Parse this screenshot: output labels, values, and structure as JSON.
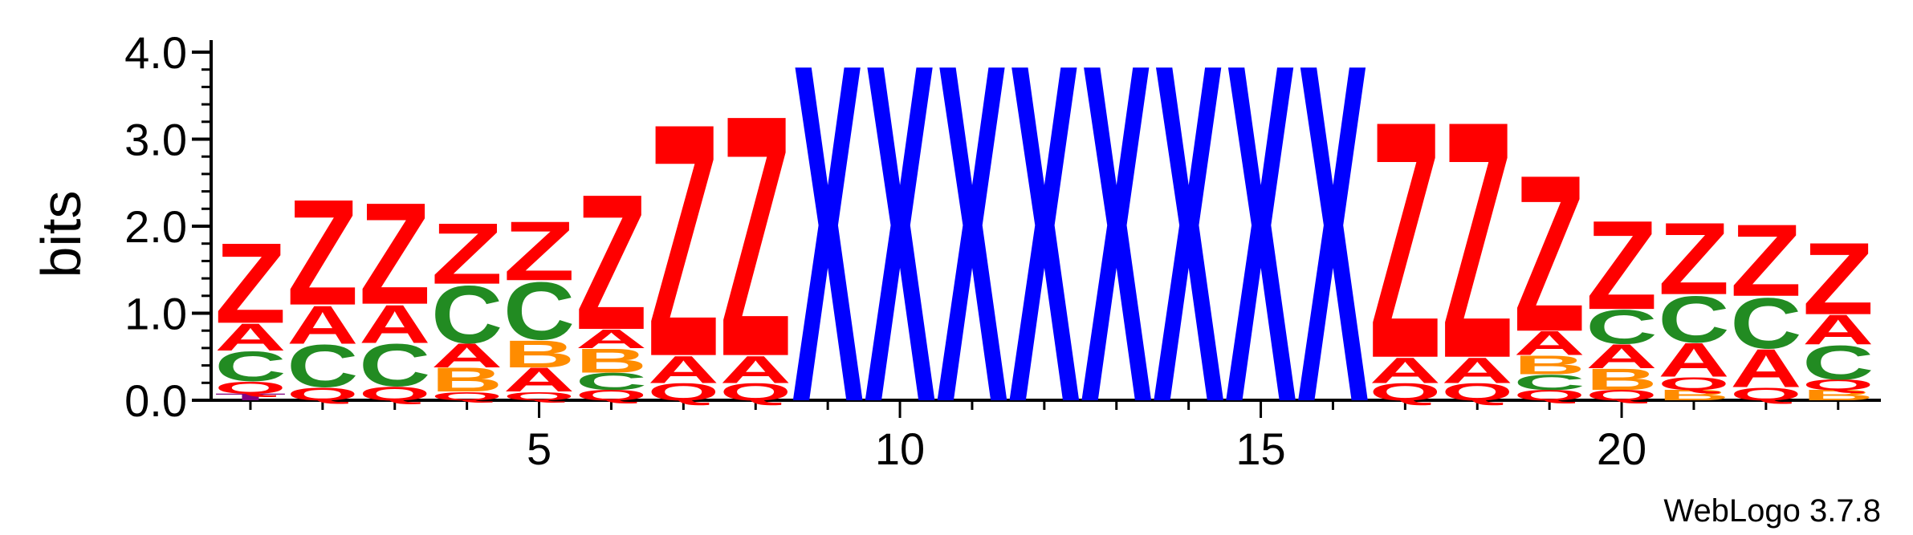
{
  "chart_data": {
    "type": "sequence-logo",
    "ylabel": "bits",
    "ylim": [
      0,
      4.0
    ],
    "yticks": [
      "0.0",
      "1.0",
      "2.0",
      "3.0",
      "4.0"
    ],
    "xticks": [
      {
        "pos": 5,
        "label": "5"
      },
      {
        "pos": 10,
        "label": "10"
      },
      {
        "pos": 15,
        "label": "15"
      },
      {
        "pos": 20,
        "label": "20"
      }
    ],
    "credit": "WebLogo 3.7.8",
    "colors": {
      "Z": "#ff0000",
      "A": "#ff0000",
      "Q": "#ff0000",
      "C": "#228b22",
      "B": "#ff8c00",
      "X": "#0000ff",
      "T": "#800080"
    },
    "positions": [
      {
        "pos": 1,
        "stack": [
          {
            "letter": "T",
            "h": 0.08
          },
          {
            "letter": "Q",
            "h": 0.14
          },
          {
            "letter": "C",
            "h": 0.35
          },
          {
            "letter": "A",
            "h": 0.32
          },
          {
            "letter": "Z",
            "h": 0.95
          }
        ]
      },
      {
        "pos": 2,
        "stack": [
          {
            "letter": "Q",
            "h": 0.15
          },
          {
            "letter": "C",
            "h": 0.5
          },
          {
            "letter": "A",
            "h": 0.45
          },
          {
            "letter": "Z",
            "h": 1.25
          }
        ]
      },
      {
        "pos": 3,
        "stack": [
          {
            "letter": "Q",
            "h": 0.16
          },
          {
            "letter": "C",
            "h": 0.5
          },
          {
            "letter": "A",
            "h": 0.45
          },
          {
            "letter": "Z",
            "h": 1.2
          }
        ]
      },
      {
        "pos": 4,
        "stack": [
          {
            "letter": "Q",
            "h": 0.1
          },
          {
            "letter": "B",
            "h": 0.28
          },
          {
            "letter": "A",
            "h": 0.28
          },
          {
            "letter": "C",
            "h": 0.68
          },
          {
            "letter": "Z",
            "h": 0.72
          }
        ]
      },
      {
        "pos": 5,
        "stack": [
          {
            "letter": "Q",
            "h": 0.1
          },
          {
            "letter": "A",
            "h": 0.28
          },
          {
            "letter": "B",
            "h": 0.32
          },
          {
            "letter": "C",
            "h": 0.68
          },
          {
            "letter": "Z",
            "h": 0.7
          }
        ]
      },
      {
        "pos": 6,
        "stack": [
          {
            "letter": "Q",
            "h": 0.12
          },
          {
            "letter": "C",
            "h": 0.2
          },
          {
            "letter": "B",
            "h": 0.28
          },
          {
            "letter": "A",
            "h": 0.22
          },
          {
            "letter": "Z",
            "h": 1.6
          }
        ]
      },
      {
        "pos": 7,
        "stack": [
          {
            "letter": "Q",
            "h": 0.2
          },
          {
            "letter": "A",
            "h": 0.32
          },
          {
            "letter": "Z",
            "h": 2.75
          }
        ]
      },
      {
        "pos": 8,
        "stack": [
          {
            "letter": "Q",
            "h": 0.2
          },
          {
            "letter": "A",
            "h": 0.32
          },
          {
            "letter": "Z",
            "h": 2.85
          }
        ]
      },
      {
        "pos": 9,
        "stack": [
          {
            "letter": "X",
            "h": 4.0
          }
        ]
      },
      {
        "pos": 10,
        "stack": [
          {
            "letter": "X",
            "h": 4.0
          }
        ]
      },
      {
        "pos": 11,
        "stack": [
          {
            "letter": "X",
            "h": 4.0
          }
        ]
      },
      {
        "pos": 12,
        "stack": [
          {
            "letter": "X",
            "h": 4.0
          }
        ]
      },
      {
        "pos": 13,
        "stack": [
          {
            "letter": "X",
            "h": 4.0
          }
        ]
      },
      {
        "pos": 14,
        "stack": [
          {
            "letter": "X",
            "h": 4.0
          }
        ]
      },
      {
        "pos": 15,
        "stack": [
          {
            "letter": "X",
            "h": 4.0
          }
        ]
      },
      {
        "pos": 16,
        "stack": [
          {
            "letter": "X",
            "h": 4.0
          }
        ]
      },
      {
        "pos": 17,
        "stack": [
          {
            "letter": "Q",
            "h": 0.2
          },
          {
            "letter": "A",
            "h": 0.3
          },
          {
            "letter": "Z",
            "h": 2.8
          }
        ]
      },
      {
        "pos": 18,
        "stack": [
          {
            "letter": "Q",
            "h": 0.2
          },
          {
            "letter": "A",
            "h": 0.3
          },
          {
            "letter": "Z",
            "h": 2.8
          }
        ]
      },
      {
        "pos": 19,
        "stack": [
          {
            "letter": "Q",
            "h": 0.12
          },
          {
            "letter": "C",
            "h": 0.18
          },
          {
            "letter": "B",
            "h": 0.22
          },
          {
            "letter": "A",
            "h": 0.28
          },
          {
            "letter": "Z",
            "h": 1.85
          }
        ]
      },
      {
        "pos": 20,
        "stack": [
          {
            "letter": "Q",
            "h": 0.12
          },
          {
            "letter": "B",
            "h": 0.25
          },
          {
            "letter": "A",
            "h": 0.28
          },
          {
            "letter": "C",
            "h": 0.4
          },
          {
            "letter": "Z",
            "h": 1.05
          }
        ]
      },
      {
        "pos": 21,
        "stack": [
          {
            "letter": "B",
            "h": 0.12
          },
          {
            "letter": "Q",
            "h": 0.15
          },
          {
            "letter": "A",
            "h": 0.4
          },
          {
            "letter": "C",
            "h": 0.55
          },
          {
            "letter": "Z",
            "h": 0.85
          }
        ]
      },
      {
        "pos": 22,
        "stack": [
          {
            "letter": "Q",
            "h": 0.15
          },
          {
            "letter": "A",
            "h": 0.45
          },
          {
            "letter": "C",
            "h": 0.6
          },
          {
            "letter": "Z",
            "h": 0.85
          }
        ]
      },
      {
        "pos": 23,
        "stack": [
          {
            "letter": "B",
            "h": 0.12
          },
          {
            "letter": "Q",
            "h": 0.12
          },
          {
            "letter": "C",
            "h": 0.4
          },
          {
            "letter": "A",
            "h": 0.35
          },
          {
            "letter": "Z",
            "h": 0.85
          }
        ]
      }
    ]
  }
}
